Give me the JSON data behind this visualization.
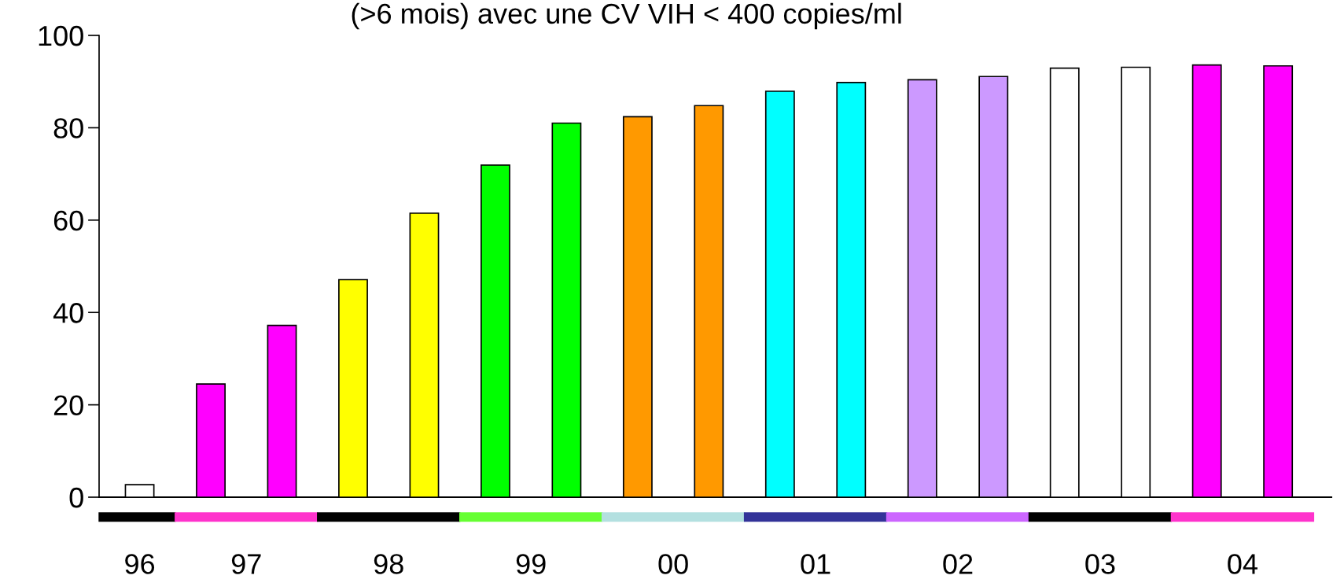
{
  "chart_data": {
    "type": "bar",
    "title": "(>6 mois) avec une CV VIH < 400 copies/ml",
    "categories": [
      null,
      null,
      null,
      null,
      null,
      null,
      null,
      null,
      null,
      null,
      null,
      null,
      null,
      null,
      null,
      null,
      null
    ],
    "values": [
      2.7,
      24.5,
      37.2,
      47.1,
      61.5,
      71.9,
      81.0,
      82.4,
      84.8,
      87.9,
      89.8,
      90.4,
      91.1,
      92.9,
      93.1,
      93.6,
      93.4
    ],
    "colors": [
      "#ffffff",
      "#ff00ff",
      "#ff00ff",
      "#ffff00",
      "#ffff00",
      "#00ff00",
      "#00ff00",
      "#ff9900",
      "#ff9900",
      "#00ffff",
      "#00ffff",
      "#cc99ff",
      "#cc99ff",
      "#ffffff",
      "#ffffff",
      "#ff00ff",
      "#ff00ff"
    ],
    "ylim": [
      0,
      100
    ],
    "yticks": [
      0,
      20,
      40,
      60,
      80,
      100
    ],
    "annotations": [
      "96",
      "97",
      "98",
      "99",
      "00",
      "01",
      "02",
      "03",
      "04"
    ]
  }
}
